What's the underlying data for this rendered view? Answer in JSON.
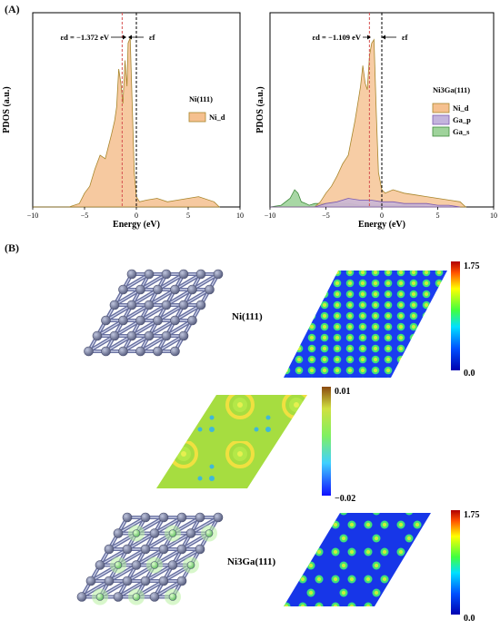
{
  "panel_a": {
    "letter": "(A)",
    "plots": [
      {
        "ylabel": "PDOS (a.u.)",
        "xlabel": "Energy (eV)",
        "system": "Ni(111)",
        "ed_label": "εd = −1.372 eV",
        "ef_label": "εf",
        "legend": [
          {
            "name": "Ni_d",
            "color": "#f5c08f"
          }
        ],
        "xticks": [
          "−10",
          "−5",
          "0",
          "5",
          "10"
        ]
      },
      {
        "ylabel": "PDOS (a.u.)",
        "xlabel": "Energy (eV)",
        "system": "Ni3Ga(111)",
        "ed_label": "εd = −1.109 eV",
        "ef_label": "εf",
        "legend": [
          {
            "name": "Ni_d",
            "color": "#f5c08f"
          },
          {
            "name": "Ga_p",
            "color": "#c3b4dd"
          },
          {
            "name": "Ga_s",
            "color": "#9fd39b"
          }
        ],
        "xticks": [
          "−10",
          "−5",
          "0",
          "5",
          "10"
        ]
      }
    ]
  },
  "chart_data": [
    {
      "type": "area",
      "title": "Ni(111)",
      "xlabel": "Energy (eV)",
      "ylabel": "PDOS (a.u.)",
      "xlim": [
        -10,
        10
      ],
      "d_band_center": -1.372,
      "fermi_level": 0,
      "series": [
        {
          "name": "Ni_d",
          "x": [
            -10,
            -6.5,
            -5.5,
            -5,
            -4.5,
            -4,
            -3.5,
            -3,
            -2.7,
            -2.4,
            -2.1,
            -1.9,
            -1.7,
            -1.5,
            -1.3,
            -1.1,
            -0.9,
            -0.8,
            -0.6,
            -0.4,
            -0.2,
            0,
            0.3,
            1,
            2,
            3,
            4,
            5,
            6,
            7.5,
            8
          ],
          "y": [
            0,
            0,
            0.02,
            0.08,
            0.12,
            0.22,
            0.3,
            0.28,
            0.35,
            0.42,
            0.5,
            0.58,
            0.8,
            0.72,
            0.6,
            0.85,
            0.7,
            0.95,
            0.98,
            0.6,
            0.2,
            0.06,
            0.03,
            0.04,
            0.05,
            0.03,
            0.04,
            0.05,
            0.06,
            0.03,
            0
          ]
        }
      ]
    },
    {
      "type": "area",
      "title": "Ni3Ga(111)",
      "xlabel": "Energy (eV)",
      "ylabel": "PDOS (a.u.)",
      "xlim": [
        -10,
        10
      ],
      "d_band_center": -1.109,
      "fermi_level": 0,
      "series": [
        {
          "name": "Ni_d",
          "x": [
            -10,
            -6,
            -5.5,
            -5,
            -4.5,
            -4,
            -3.5,
            -3,
            -2.7,
            -2.4,
            -2.1,
            -1.9,
            -1.7,
            -1.5,
            -1.3,
            -1.1,
            -0.9,
            -0.7,
            -0.5,
            -0.3,
            0,
            0.3,
            1,
            2,
            3,
            4,
            5,
            6,
            7,
            7.5
          ],
          "y": [
            0,
            0,
            0.03,
            0.08,
            0.12,
            0.18,
            0.25,
            0.3,
            0.4,
            0.5,
            0.62,
            0.7,
            0.82,
            0.72,
            0.68,
            0.88,
            0.95,
            0.97,
            0.55,
            0.2,
            0.1,
            0.08,
            0.1,
            0.08,
            0.07,
            0.06,
            0.05,
            0.04,
            0.03,
            0
          ]
        },
        {
          "name": "Ga_p",
          "x": [
            -10,
            -6,
            -5,
            -4,
            -3,
            -2,
            -1,
            0,
            1,
            2,
            3,
            4,
            5,
            6,
            7
          ],
          "y": [
            0,
            0,
            0.02,
            0.03,
            0.05,
            0.04,
            0.04,
            0.03,
            0.03,
            0.02,
            0.02,
            0.02,
            0.01,
            0.01,
            0
          ]
        },
        {
          "name": "Ga_s",
          "x": [
            -10,
            -9,
            -8.2,
            -7.8,
            -7.5,
            -7.2,
            -6.8,
            -6.5,
            -6,
            -5,
            -4,
            -3,
            -2,
            -1,
            0,
            2,
            5
          ],
          "y": [
            0,
            0.01,
            0.05,
            0.1,
            0.08,
            0.03,
            0.02,
            0.01,
            0.02,
            0.02,
            0.02,
            0.02,
            0.01,
            0.01,
            0.01,
            0.01,
            0
          ]
        }
      ]
    }
  ],
  "panel_b": {
    "letter": "(B)",
    "label_top": "Ni(111)",
    "label_bottom": "Ni3Ga(111)",
    "colorbars": [
      {
        "max": "1.75",
        "min": "0.0"
      },
      {
        "max": "0.01",
        "min": "−0.02"
      },
      {
        "max": "1.75",
        "min": "0.0"
      }
    ]
  }
}
